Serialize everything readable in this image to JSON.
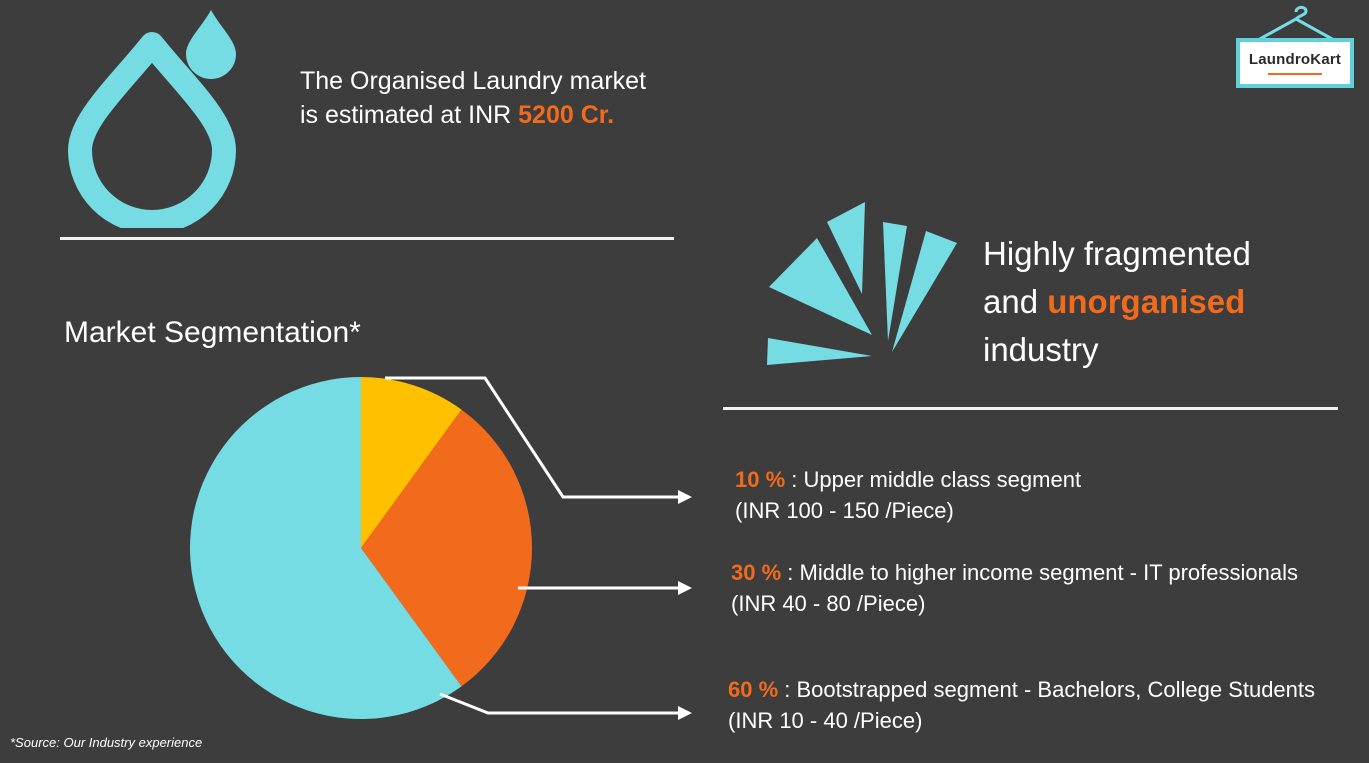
{
  "market": {
    "line1": "The Organised Laundry market",
    "line2_prefix": "is estimated at INR ",
    "line2_value": "5200 Cr."
  },
  "fragmented": {
    "line1": "Highly fragmented",
    "line2_prefix": "and ",
    "line2_accent": "unorganised",
    "line3": "industry"
  },
  "logo": {
    "text": "LaundroKart"
  },
  "source_note": "*Source: Our Industry  experience",
  "colors": {
    "background": "#3d3d3d",
    "accent_orange": "#f26b1d",
    "accent_cyan": "#75dce3",
    "accent_yellow": "#ffc000",
    "divider": "#f2f2f2"
  },
  "icons": {
    "drop": "water-drop-icon",
    "burst": "fragmented-burst-icon",
    "hanger": "hanger-icon"
  },
  "segments": [
    {
      "pct_label": "10 %",
      "description": " : Upper middle class segment",
      "price": "(INR 100 - 150 /Piece)"
    },
    {
      "pct_label": "30 %",
      "description": " : Middle to higher income segment - IT  professionals",
      "price": "(INR 40 - 80 /Piece)"
    },
    {
      "pct_label": "60 %",
      "description": " : Bootstrapped segment - Bachelors, College Students",
      "price": "(INR 10 - 40 /Piece)"
    }
  ],
  "chart_data": {
    "type": "pie",
    "title": "Market Segmentation*",
    "slices": [
      {
        "name": "Upper middle class segment",
        "value": 10,
        "color": "#ffc000"
      },
      {
        "name": "Middle to higher income segment - IT professionals",
        "value": 30,
        "color": "#f26b1d"
      },
      {
        "name": "Bootstrapped segment - Bachelors, College Students",
        "value": 60,
        "color": "#75dce3"
      }
    ]
  }
}
